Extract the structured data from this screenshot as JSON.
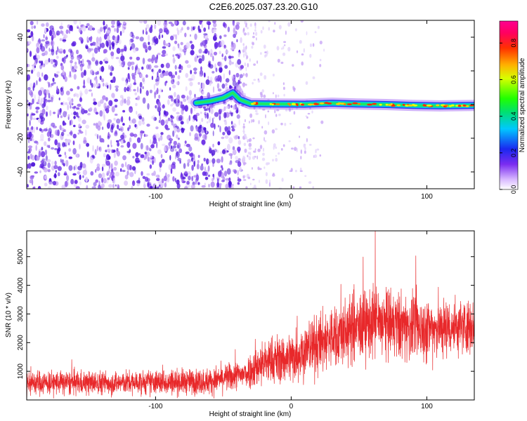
{
  "figure_title": "C2E6.2025.037.23.20.G10",
  "colors": {
    "snr_line": "#e8282a",
    "axis": "#000000",
    "spectrogram_noise": "#5a1fe0"
  },
  "chart_data": [
    {
      "type": "heatmap",
      "title": "C2E6.2025.037.23.20.G10",
      "xlabel": "Height of straight line (km)",
      "ylabel": "Frequency (Hz)",
      "xlim": [
        -195,
        135
      ],
      "ylim": [
        -50,
        50
      ],
      "x_ticks": [
        -100,
        0,
        100
      ],
      "x_tick_labels": [
        "-100",
        "0",
        "100"
      ],
      "y_ticks": [
        40,
        20,
        0,
        -20,
        -40
      ],
      "y_tick_labels": [
        "40",
        "20",
        "0",
        "-20",
        "-40"
      ],
      "colorbar": {
        "label": "Normalized spectral amplitude",
        "range": [
          0.0,
          0.92
        ],
        "ticks": [
          0.0,
          0.2,
          0.4,
          0.6,
          0.8
        ],
        "tick_labels": [
          "0.0",
          "0.2",
          "0.4",
          "0.6",
          "0.8"
        ],
        "colormap": "rainbow (white→purple→blue→cyan→green→yellow→orange→red→magenta)"
      },
      "signal_track": [
        {
          "x": -70,
          "y": 1
        },
        {
          "x": -60,
          "y": 2
        },
        {
          "x": -50,
          "y": 4
        },
        {
          "x": -43,
          "y": 7
        },
        {
          "x": -38,
          "y": 3
        },
        {
          "x": -30,
          "y": 0.5
        },
        {
          "x": -10,
          "y": 0.3
        },
        {
          "x": 10,
          "y": 0.2
        },
        {
          "x": 30,
          "y": 0.8
        },
        {
          "x": 50,
          "y": 0.3
        },
        {
          "x": 70,
          "y": 0
        },
        {
          "x": 90,
          "y": -0.5
        },
        {
          "x": 110,
          "y": -0.8
        },
        {
          "x": 135,
          "y": -0.5
        }
      ],
      "noise_region_x": [
        -195,
        -35
      ]
    },
    {
      "type": "line",
      "title": "",
      "xlabel": "Height of straight line (km)",
      "ylabel": "SNR (10 * v/v)",
      "xlim": [
        -195,
        135
      ],
      "ylim": [
        0,
        5900
      ],
      "x_ticks": [
        -100,
        0,
        100
      ],
      "x_tick_labels": [
        "-100",
        "0",
        "100"
      ],
      "y_ticks": [
        1000,
        2000,
        3000,
        4000,
        5000
      ],
      "y_tick_labels": [
        "1000",
        "2000",
        "3000",
        "4000",
        "5000"
      ],
      "envelope": [
        {
          "x": -195,
          "mean": 600,
          "spread": 420
        },
        {
          "x": -120,
          "mean": 600,
          "spread": 400
        },
        {
          "x": -60,
          "mean": 650,
          "spread": 450
        },
        {
          "x": -35,
          "mean": 900,
          "spread": 500
        },
        {
          "x": -20,
          "mean": 1300,
          "spread": 800
        },
        {
          "x": 0,
          "mean": 1500,
          "spread": 900
        },
        {
          "x": 30,
          "mean": 2200,
          "spread": 1100
        },
        {
          "x": 60,
          "mean": 2700,
          "spread": 1200
        },
        {
          "x": 100,
          "mean": 2500,
          "spread": 1100
        },
        {
          "x": 135,
          "mean": 2600,
          "spread": 900
        }
      ],
      "peak": {
        "x": 62,
        "y": 5900
      }
    }
  ]
}
